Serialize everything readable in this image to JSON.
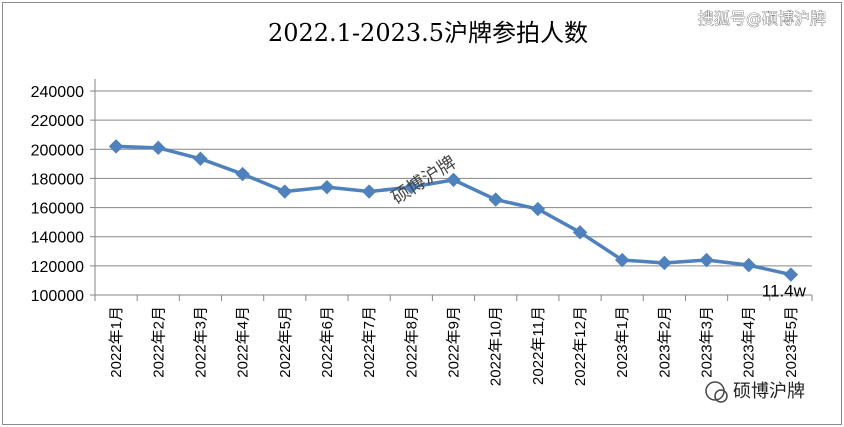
{
  "chart_data": {
    "type": "line",
    "title": "2022.1-2023.5沪牌参拍人数",
    "categories": [
      "2022年1月",
      "2022年2月",
      "2022年3月",
      "2022年4月",
      "2022年5月",
      "2022年6月",
      "2022年7月",
      "2022年8月",
      "2022年9月",
      "2022年10月",
      "2022年11月",
      "2022年12月",
      "2023年1月",
      "2023年2月",
      "2023年3月",
      "2023年4月",
      "2023年5月"
    ],
    "series": [
      {
        "values": [
          202000,
          201000,
          193500,
          183000,
          171000,
          174000,
          171000,
          174000,
          179000,
          165500,
          159000,
          143000,
          124000,
          122000,
          124000,
          120500,
          114000
        ],
        "color": "#4f81bd"
      }
    ],
    "yticks": [
      "100000",
      "120000",
      "140000",
      "160000",
      "180000",
      "200000",
      "220000",
      "240000"
    ],
    "ylim": [
      100000,
      240000
    ],
    "grid": true,
    "last_label": "11.4w"
  },
  "watermarks": {
    "top_right": "搜狐号@硕博沪牌",
    "center": "硕博沪牌",
    "bottom_right": "硕博沪牌"
  }
}
